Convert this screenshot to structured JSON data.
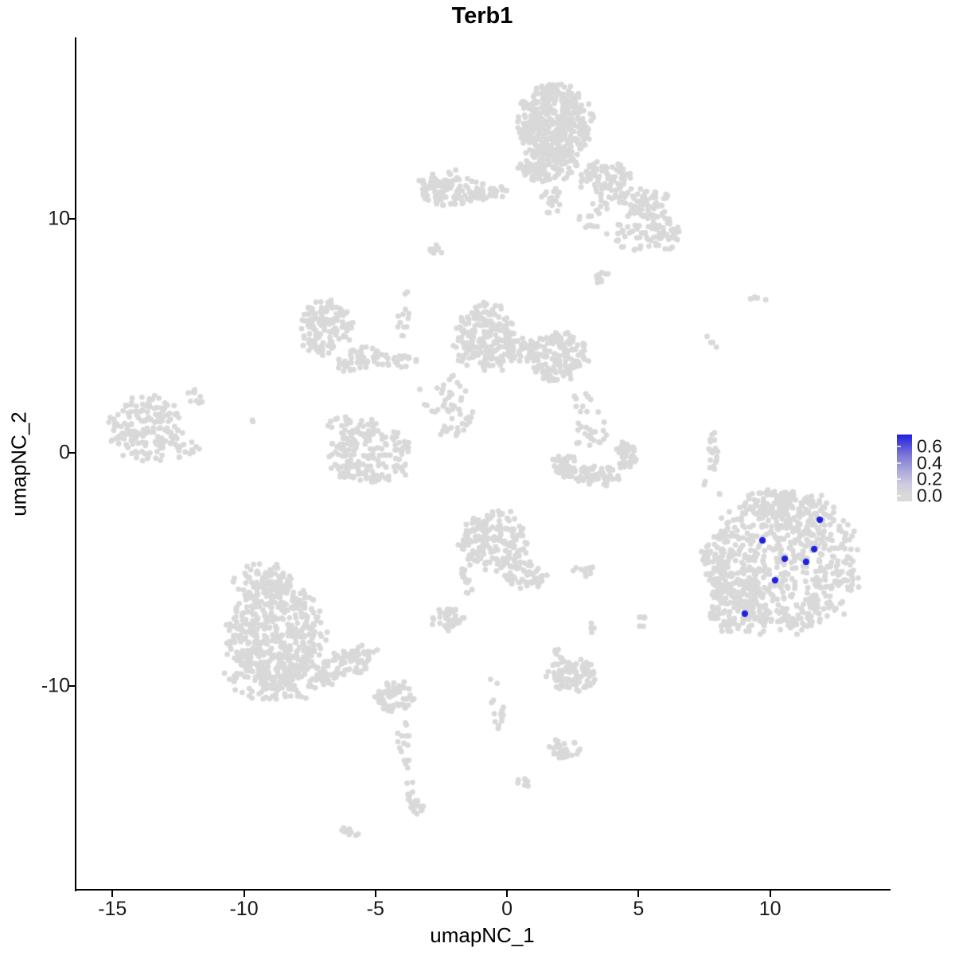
{
  "title": "Terb1",
  "axes": {
    "x": {
      "label": "umapNC_1",
      "tick_labels": [
        "-15",
        "-10",
        "-5",
        "0",
        "5",
        "10"
      ],
      "tick_values": [
        -15,
        -10,
        -5,
        0,
        5,
        10
      ],
      "lim": [
        -16.4,
        14.55
      ]
    },
    "y": {
      "label": "umapNC_2",
      "tick_labels": [
        "10",
        "0",
        "-10"
      ],
      "tick_values": [
        10,
        0,
        -10
      ],
      "lim": [
        -18.72,
        17.77
      ]
    }
  },
  "legend": {
    "tick_labels": [
      "0.6",
      "0.4",
      "0.2",
      "0.0"
    ],
    "tick_values": [
      0.6,
      0.4,
      0.2,
      0.0
    ],
    "gradient_stops": [
      "#2020e0 0%",
      "#7b74d8 30%",
      "#aeaadc 55%",
      "#cecbdf 75%",
      "#d9d9d9 90%",
      "#d9d9d9 100%"
    ]
  },
  "colors": {
    "point_gray": "#d9d9d9",
    "point_blue": "#2020e0",
    "axis": "#000000",
    "background": "#ffffff"
  },
  "chart_data": {
    "type": "scatter",
    "title": "Terb1",
    "xlabel": "umapNC_1",
    "ylabel": "umapNC_2",
    "xlim": [
      -16.4,
      14.55
    ],
    "ylim": [
      -18.72,
      17.77
    ],
    "grid": false,
    "legend_position": "right",
    "colorbar": {
      "min": 0.0,
      "max": 0.65,
      "ticks": [
        0.0,
        0.2,
        0.4,
        0.6
      ],
      "low_color": "#d9d9d9",
      "high_color": "#2020e0"
    },
    "highlighted_points": [
      {
        "x": 11.89,
        "y": -2.88,
        "value": 0.6
      },
      {
        "x": 9.71,
        "y": -3.76,
        "value": 0.6
      },
      {
        "x": 11.68,
        "y": -4.14,
        "value": 0.6
      },
      {
        "x": 10.56,
        "y": -4.55,
        "value": 0.6
      },
      {
        "x": 11.37,
        "y": -4.68,
        "value": 0.6
      },
      {
        "x": 10.19,
        "y": -5.47,
        "value": 0.6
      },
      {
        "x": 9.04,
        "y": -6.9,
        "value": 0.6
      }
    ],
    "background_cluster_format": "[center_x, center_y, radius_x, radius_y, n_points, rotation_deg] in data coords, value=0.0 (gray)",
    "background_clusters": [
      [
        1.85,
        14.19,
        1.36,
        1.53,
        420,
        0
      ],
      [
        1.6,
        12.39,
        1.21,
        0.85,
        130,
        0
      ],
      [
        1.69,
        10.79,
        0.36,
        0.61,
        18,
        0
      ],
      [
        3.72,
        11.71,
        1.06,
        0.68,
        80,
        0
      ],
      [
        4.02,
        10.24,
        1.36,
        0.95,
        45,
        0
      ],
      [
        5.23,
        10.79,
        0.91,
        0.68,
        60,
        0
      ],
      [
        5.93,
        9.42,
        0.61,
        0.82,
        55,
        0
      ],
      [
        4.78,
        9.15,
        0.76,
        0.61,
        25,
        0
      ],
      [
        3.72,
        7.38,
        0.42,
        0.34,
        10,
        0
      ],
      [
        -2.18,
        11.3,
        1.27,
        0.75,
        110,
        0
      ],
      [
        -0.51,
        11.09,
        0.76,
        0.34,
        28,
        0
      ],
      [
        -2.75,
        8.71,
        0.33,
        0.2,
        12,
        -35
      ],
      [
        -3.99,
        6.02,
        0.27,
        1.12,
        13,
        0
      ],
      [
        -6.93,
        5.33,
        1.03,
        1.12,
        135,
        0
      ],
      [
        -5.6,
        4.04,
        0.91,
        0.48,
        40,
        25
      ],
      [
        -4.39,
        3.97,
        0.97,
        0.34,
        30,
        0
      ],
      [
        -0.82,
        4.89,
        1.21,
        1.43,
        210,
        0
      ],
      [
        0.54,
        4.38,
        0.61,
        0.51,
        40,
        0
      ],
      [
        1.91,
        4.14,
        1.15,
        1.02,
        150,
        0
      ],
      [
        1.91,
        3.33,
        0.61,
        0.31,
        22,
        0
      ],
      [
        -2.39,
        2.44,
        0.91,
        0.89,
        32,
        0
      ],
      [
        -1.88,
        1.21,
        0.85,
        0.37,
        20,
        35
      ],
      [
        -5.2,
        -0.12,
        1.57,
        1.23,
        175,
        0
      ],
      [
        -5.78,
        1.18,
        1.03,
        0.48,
        24,
        0
      ],
      [
        -13.64,
        0.97,
        1.42,
        1.43,
        165,
        0
      ],
      [
        -11.83,
        2.34,
        0.39,
        0.34,
        10,
        0
      ],
      [
        -9.65,
        1.32,
        0.12,
        0.14,
        2,
        0
      ],
      [
        -12.25,
        0.22,
        0.61,
        0.48,
        14,
        0
      ],
      [
        7.9,
        0.12,
        0.27,
        0.92,
        18,
        0
      ],
      [
        9.53,
        6.63,
        0.39,
        0.17,
        5,
        0
      ],
      [
        7.75,
        4.65,
        0.27,
        0.37,
        4,
        0
      ],
      [
        8.11,
        -1.85,
        0.12,
        0.14,
        2,
        0
      ],
      [
        2.21,
        -0.56,
        0.51,
        0.48,
        40,
        0
      ],
      [
        3.36,
        -1.0,
        0.88,
        0.44,
        65,
        0
      ],
      [
        4.51,
        -0.12,
        0.42,
        0.58,
        42,
        0
      ],
      [
        3.12,
        0.97,
        0.64,
        0.85,
        24,
        0
      ],
      [
        2.84,
        2.13,
        0.39,
        0.41,
        9,
        0
      ],
      [
        10.53,
        -4.68,
        2.81,
        3.0,
        680,
        0
      ],
      [
        8.8,
        -6.59,
        1.09,
        1.16,
        130,
        0
      ],
      [
        10.32,
        -2.16,
        1.39,
        0.55,
        70,
        0
      ],
      [
        8.05,
        -4.58,
        0.61,
        1.29,
        60,
        0
      ],
      [
        7.59,
        -1.34,
        0.12,
        0.14,
        2,
        0
      ],
      [
        -0.51,
        -3.8,
        1.27,
        1.29,
        185,
        0
      ],
      [
        0.7,
        -5.23,
        0.79,
        0.61,
        55,
        0
      ],
      [
        -1.48,
        -5.4,
        0.3,
        0.75,
        12,
        0
      ],
      [
        -2.27,
        -7.13,
        0.61,
        0.51,
        40,
        0
      ],
      [
        2.87,
        -5.06,
        0.57,
        0.24,
        11,
        0
      ],
      [
        3.3,
        -7.44,
        0.18,
        0.31,
        4,
        0
      ],
      [
        5.11,
        -7.27,
        0.24,
        0.44,
        6,
        0
      ],
      [
        -8.83,
        -7.82,
        1.82,
        2.32,
        430,
        0
      ],
      [
        -8.62,
        -9.66,
        2.0,
        0.95,
        140,
        0
      ],
      [
        -9.29,
        -5.6,
        1.09,
        0.89,
        85,
        0
      ],
      [
        -6.08,
        -9.04,
        1.21,
        0.61,
        80,
        25
      ],
      [
        -4.27,
        -10.41,
        0.7,
        0.65,
        70,
        0
      ],
      [
        -3.93,
        -12.18,
        0.24,
        0.82,
        10,
        0
      ],
      [
        -3.78,
        -13.27,
        0.15,
        0.27,
        4,
        0
      ],
      [
        -3.66,
        -14.36,
        0.18,
        0.61,
        8,
        0
      ],
      [
        -3.45,
        -15.11,
        0.39,
        0.37,
        20,
        0
      ],
      [
        -5.96,
        -16.2,
        0.39,
        0.2,
        9,
        -35
      ],
      [
        2.45,
        -9.52,
        0.94,
        0.68,
        95,
        0
      ],
      [
        1.91,
        -8.6,
        0.39,
        0.31,
        6,
        0
      ],
      [
        -0.45,
        -10.54,
        0.27,
        1.29,
        16,
        8
      ],
      [
        2.21,
        -12.69,
        0.57,
        0.48,
        30,
        0
      ],
      [
        0.64,
        -14.09,
        0.27,
        0.27,
        8,
        0
      ],
      [
        -3.84,
        -12.45,
        0.1,
        0.1,
        1,
        0
      ],
      [
        -3.69,
        -13.1,
        0.1,
        0.1,
        1,
        0
      ]
    ]
  }
}
